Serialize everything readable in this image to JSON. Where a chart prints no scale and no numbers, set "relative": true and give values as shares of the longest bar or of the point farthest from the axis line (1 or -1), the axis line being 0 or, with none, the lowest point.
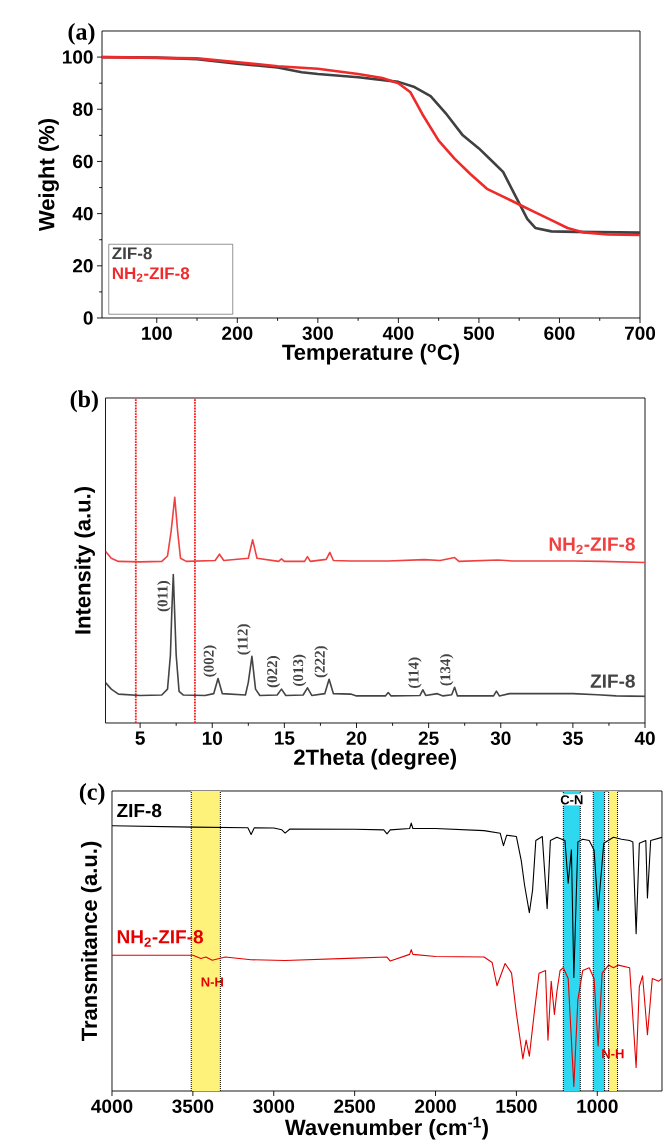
{
  "chart_data": [
    {
      "type": "line",
      "title": "(a)",
      "xlabel": "Temperature ($^{o}$C)",
      "ylabel": "Weight (%)",
      "xlim": [
        32,
        700
      ],
      "ylim": [
        0,
        110
      ],
      "xticks": [
        100,
        200,
        300,
        400,
        500,
        600,
        700
      ],
      "yticks": [
        0,
        20,
        40,
        60,
        80,
        100
      ],
      "legend": "bottom left",
      "series": [
        {
          "name": "ZIF-8",
          "color": "#404040",
          "x": [
            32,
            100,
            150,
            200,
            250,
            280,
            300,
            350,
            400,
            420,
            440,
            460,
            480,
            500,
            520,
            530,
            540,
            550,
            560,
            570,
            590,
            620,
            700
          ],
          "values": [
            100,
            99.8,
            99.2,
            97.5,
            96,
            94.2,
            93.5,
            92.3,
            90.5,
            88.5,
            85,
            78,
            70,
            65,
            59,
            56,
            50,
            44,
            38,
            34.5,
            33.2,
            33,
            32.7
          ]
        },
        {
          "name": "NH$_{2}$-ZIF-8",
          "color": "#ee2a2a",
          "x": [
            32,
            150,
            200,
            250,
            300,
            350,
            380,
            400,
            415,
            430,
            450,
            470,
            490,
            510,
            530,
            550,
            570,
            590,
            610,
            630,
            660,
            700
          ],
          "values": [
            100,
            99.5,
            98,
            96.5,
            95.5,
            93.5,
            92,
            90,
            86.5,
            78,
            68,
            61,
            55,
            49.5,
            46.5,
            43.5,
            40.5,
            37.5,
            34.5,
            32.8,
            32,
            31.8
          ]
        }
      ]
    },
    {
      "type": "line",
      "title": "(b)",
      "xlabel": "2Theta (degree)",
      "ylabel": "Intensity (a.u.)",
      "relative": true,
      "tick_labels": "x",
      "xlim": [
        2.6,
        40
      ],
      "xticks": [
        5,
        10,
        15,
        20,
        25,
        30,
        35,
        40
      ],
      "ref_lines": [
        {
          "axis": "x",
          "value": 4.7,
          "color": "#ff1a1a",
          "line_style": "dotted"
        },
        {
          "axis": "x",
          "value": 8.8,
          "color": "#ff1a1a",
          "line_style": "dotted"
        }
      ],
      "annotations": [
        {
          "text": "(011)",
          "x": 7.2,
          "y": 0.5
        },
        {
          "text": "(002)",
          "x": 10.4,
          "y": 0.197
        },
        {
          "text": "(112)",
          "x": 12.75,
          "y": 0.295
        },
        {
          "text": "(022)",
          "x": 14.8,
          "y": 0.15
        },
        {
          "text": "(013)",
          "x": 16.6,
          "y": 0.156
        },
        {
          "text": "(222)",
          "x": 18.1,
          "y": 0.194
        },
        {
          "text": "(114)",
          "x": 24.6,
          "y": 0.147
        },
        {
          "text": "(134)",
          "x": 26.8,
          "y": 0.158
        }
      ],
      "series": [
        {
          "name": "NH$_{2}$-ZIF-8",
          "color": "#f04040",
          "x": [
            2.6,
            3.0,
            3.5,
            5.0,
            6.5,
            6.9,
            7.15,
            7.4,
            7.6,
            7.8,
            8.2,
            10.2,
            10.5,
            10.8,
            12.5,
            12.8,
            13.1,
            14.6,
            14.8,
            15.0,
            16.4,
            16.6,
            16.8,
            17.9,
            18.15,
            18.4,
            19.6,
            22.2,
            24.7,
            25.8,
            26.8,
            27.1,
            29.8,
            30.8,
            31.6,
            32.6,
            35.1,
            37,
            40
          ],
          "values": [
            0.761,
            0.73,
            0.716,
            0.714,
            0.716,
            0.74,
            0.85,
            1.0,
            0.85,
            0.73,
            0.716,
            0.72,
            0.748,
            0.72,
            0.73,
            0.812,
            0.73,
            0.716,
            0.727,
            0.716,
            0.716,
            0.737,
            0.716,
            0.725,
            0.756,
            0.72,
            0.718,
            0.718,
            0.724,
            0.72,
            0.733,
            0.716,
            0.722,
            0.718,
            0.718,
            0.718,
            0.718,
            0.716,
            0.711
          ]
        },
        {
          "name": "ZIF-8",
          "color": "#444444",
          "x": [
            2.6,
            3.0,
            3.5,
            5.0,
            6.5,
            6.9,
            7.1,
            7.2,
            7.3,
            7.5,
            7.7,
            8.0,
            9.5,
            10.1,
            10.4,
            10.7,
            12.3,
            12.5,
            12.75,
            13.0,
            13.3,
            14.5,
            14.8,
            15.1,
            16.3,
            16.6,
            16.9,
            17.8,
            18.1,
            18.4,
            19.6,
            20.0,
            22.0,
            22.2,
            22.4,
            24.4,
            24.6,
            24.8,
            25.6,
            26.0,
            26.6,
            26.8,
            27.0,
            29.5,
            29.7,
            29.9,
            30.6,
            31.6,
            32.5,
            35.0,
            36.7,
            38,
            40
          ],
          "values": [
            0.179,
            0.15,
            0.128,
            0.122,
            0.124,
            0.15,
            0.3,
            0.5,
            0.658,
            0.3,
            0.14,
            0.124,
            0.122,
            0.13,
            0.197,
            0.13,
            0.124,
            0.18,
            0.295,
            0.15,
            0.122,
            0.124,
            0.15,
            0.122,
            0.124,
            0.156,
            0.122,
            0.13,
            0.194,
            0.13,
            0.128,
            0.12,
            0.12,
            0.135,
            0.12,
            0.122,
            0.147,
            0.122,
            0.13,
            0.12,
            0.125,
            0.158,
            0.12,
            0.12,
            0.141,
            0.12,
            0.13,
            0.13,
            0.13,
            0.13,
            0.125,
            0.12,
            0.118
          ]
        }
      ]
    },
    {
      "type": "line",
      "title": "(c)",
      "xlabel": "Wavenumber (cm$^{-1}$)",
      "ylabel": "Transmitance (a.u.)",
      "relative": true,
      "tick_labels": "x",
      "xlim": [
        4000,
        600
      ],
      "xticks": [
        4000,
        3500,
        3000,
        2500,
        2000,
        1500,
        1000
      ],
      "bands": [
        {
          "axis": "x",
          "from": 3510,
          "to": 3330,
          "color": "#fff27a"
        },
        {
          "axis": "x",
          "from": 1210,
          "to": 1105,
          "color": "#2ed8f0",
          "label": "C-N"
        },
        {
          "axis": "x",
          "from": 1025,
          "to": 955,
          "color": "#2ed8f0"
        },
        {
          "axis": "x",
          "from": 930,
          "to": 875,
          "color": "#fff27a"
        }
      ],
      "annotations": [
        {
          "text": "N-H",
          "x": 3380,
          "y": 0.488
        },
        {
          "text": "N-H",
          "x": 995,
          "y": 0.168
        }
      ],
      "series": [
        {
          "name": "ZIF-8",
          "color": "#000000",
          "x": [
            4000,
            3500,
            3160,
            3140,
            3120,
            3000,
            2950,
            2930,
            2900,
            2500,
            2320,
            2300,
            2280,
            2160,
            2150,
            2140,
            2000,
            1700,
            1600,
            1580,
            1560,
            1500,
            1470,
            1450,
            1420,
            1400,
            1380,
            1340,
            1310,
            1290,
            1250,
            1200,
            1180,
            1160,
            1145,
            1120,
            1090,
            1050,
            1020,
            995,
            960,
            900,
            850,
            800,
            780,
            760,
            740,
            700,
            690,
            670,
            600
          ],
          "values": [
            0.99,
            0.985,
            0.983,
            0.958,
            0.983,
            0.982,
            0.975,
            0.963,
            0.978,
            0.977,
            0.975,
            0.96,
            0.975,
            0.98,
            1.0,
            0.98,
            0.98,
            0.972,
            0.962,
            0.916,
            0.955,
            0.95,
            0.86,
            0.77,
            0.666,
            0.75,
            0.935,
            0.95,
            0.681,
            0.935,
            0.947,
            0.935,
            0.776,
            0.9,
            0.424,
            0.93,
            0.94,
            0.935,
            0.9,
            0.674,
            0.925,
            0.947,
            0.94,
            0.935,
            0.93,
            0.587,
            0.925,
            0.935,
            0.721,
            0.935,
            0.947
          ]
        },
        {
          "name": "NH$_{2}$-ZIF-8",
          "color": "#e50000",
          "x": [
            4000,
            3500,
            3450,
            3420,
            3380,
            3300,
            3140,
            2930,
            2500,
            2300,
            2280,
            2160,
            2150,
            2140,
            2000,
            1700,
            1650,
            1620,
            1570,
            1530,
            1500,
            1460,
            1440,
            1420,
            1390,
            1360,
            1320,
            1305,
            1285,
            1265,
            1250,
            1230,
            1210,
            1180,
            1160,
            1145,
            1120,
            1090,
            1050,
            1020,
            995,
            970,
            930,
            900,
            870,
            800,
            760,
            740,
            720,
            690,
            660,
            620,
            600
          ],
          "values": [
            0.507,
            0.507,
            0.495,
            0.5,
            0.488,
            0.5,
            0.49,
            0.487,
            0.496,
            0.5,
            0.485,
            0.51,
            0.528,
            0.51,
            0.502,
            0.5,
            0.48,
            0.393,
            0.476,
            0.44,
            0.29,
            0.12,
            0.19,
            0.13,
            0.29,
            0.44,
            0.45,
            0.19,
            0.41,
            0.286,
            0.37,
            0.45,
            0.46,
            0.42,
            0.19,
            0.017,
            0.34,
            0.45,
            0.46,
            0.42,
            0.168,
            0.44,
            0.47,
            0.46,
            0.47,
            0.46,
            0.088,
            0.39,
            0.43,
            0.21,
            0.42,
            0.41,
            0.42
          ]
        }
      ]
    }
  ]
}
